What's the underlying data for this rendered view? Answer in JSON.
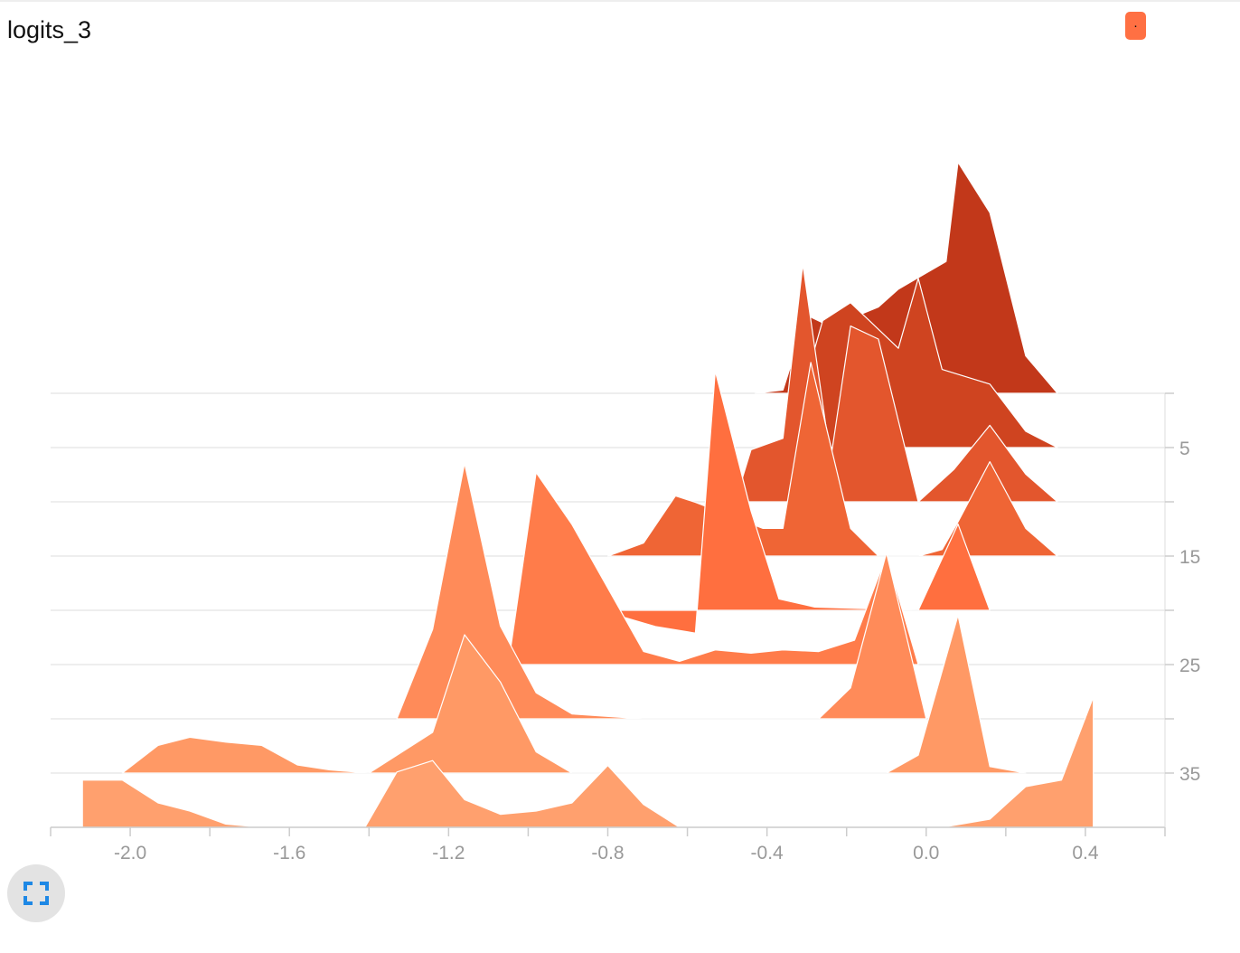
{
  "title": "logits_3",
  "legend": {
    "marker": "·",
    "color": "#ff7043"
  },
  "toolbar": {
    "expand_icon": "fullscreen-icon",
    "icon_color": "#1e88e5"
  },
  "chart_data": {
    "type": "histogram-ridgeline",
    "x_range": [
      -2.2,
      0.6
    ],
    "x_ticks": [
      -2.0,
      -1.6,
      -1.2,
      -0.8,
      -0.4,
      0.0,
      0.4
    ],
    "x_tick_labels": [
      "-2.0",
      "-1.6",
      "-1.2",
      "-0.8",
      "-0.4",
      "0.0",
      "0.4"
    ],
    "steps": [
      0,
      5,
      10,
      15,
      20,
      25,
      30,
      35,
      40
    ],
    "y_ticks": [
      5,
      15,
      25,
      35
    ],
    "y_tick_labels": [
      "5",
      "15",
      "25",
      "35"
    ],
    "series": [
      {
        "step": 0,
        "color": "#c2381a",
        "points": [
          [
            -0.43,
            0.0
          ],
          [
            -0.36,
            0.02
          ],
          [
            -0.3,
            0.48
          ],
          [
            -0.24,
            0.41
          ],
          [
            -0.12,
            0.53
          ],
          [
            -0.07,
            0.64
          ],
          [
            0.05,
            0.81
          ],
          [
            0.08,
            1.42
          ],
          [
            0.16,
            1.11
          ],
          [
            0.25,
            0.23
          ],
          [
            0.33,
            0.0
          ]
        ]
      },
      {
        "step": 5,
        "color": "#cf4420",
        "points": [
          [
            -0.35,
            0.0
          ],
          [
            -0.3,
            0.44
          ],
          [
            -0.26,
            0.78
          ],
          [
            -0.19,
            0.89
          ],
          [
            -0.07,
            0.61
          ],
          [
            -0.02,
            1.04
          ],
          [
            0.04,
            0.48
          ],
          [
            0.16,
            0.39
          ],
          [
            0.25,
            0.1
          ],
          [
            0.33,
            0.0
          ]
        ]
      },
      {
        "step": 10,
        "color": "#e3562d",
        "points": [
          [
            -0.48,
            0.0
          ],
          [
            -0.44,
            0.32
          ],
          [
            -0.36,
            0.39
          ],
          [
            -0.31,
            1.46
          ],
          [
            -0.24,
            0.26
          ],
          [
            -0.19,
            1.08
          ],
          [
            -0.12,
            1.0
          ],
          [
            -0.02,
            0.0
          ],
          [
            0.07,
            0.2
          ],
          [
            0.16,
            0.47
          ],
          [
            0.25,
            0.17
          ],
          [
            0.33,
            0.0
          ]
        ]
      },
      {
        "step": 15,
        "color": "#ef6535",
        "points": [
          [
            -0.8,
            0.0
          ],
          [
            -0.71,
            0.08
          ],
          [
            -0.63,
            0.37
          ],
          [
            -0.58,
            0.33
          ],
          [
            -0.41,
            0.17
          ],
          [
            -0.36,
            0.17
          ],
          [
            -0.29,
            1.19
          ],
          [
            -0.19,
            0.17
          ],
          [
            -0.12,
            0.0
          ],
          [
            -0.02,
            0.0
          ],
          [
            0.04,
            0.04
          ],
          [
            0.08,
            0.21
          ],
          [
            0.16,
            0.58
          ],
          [
            0.25,
            0.17
          ],
          [
            0.33,
            0.0
          ]
        ]
      },
      {
        "step": 20,
        "color": "#ff6f3f",
        "points": [
          [
            -0.82,
            0.0
          ],
          [
            -0.68,
            -0.1
          ],
          [
            -0.58,
            -0.14
          ],
          [
            -0.53,
            1.47
          ],
          [
            -0.44,
            0.61
          ],
          [
            -0.37,
            0.07
          ],
          [
            -0.28,
            0.02
          ],
          [
            -0.02,
            0.0
          ],
          [
            0.08,
            0.53
          ],
          [
            0.16,
            0.0
          ]
        ]
      },
      {
        "step": 25,
        "color": "#ff7c4a",
        "points": [
          [
            -1.05,
            0.0
          ],
          [
            -0.98,
            1.18
          ],
          [
            -0.89,
            0.86
          ],
          [
            -0.71,
            0.08
          ],
          [
            -0.62,
            0.02
          ],
          [
            -0.53,
            0.09
          ],
          [
            -0.44,
            0.07
          ],
          [
            -0.36,
            0.09
          ],
          [
            -0.27,
            0.08
          ],
          [
            -0.18,
            0.15
          ],
          [
            -0.1,
            0.67
          ],
          [
            -0.02,
            0.0
          ]
        ]
      },
      {
        "step": 30,
        "color": "#ff8b59",
        "points": [
          [
            -1.33,
            0.0
          ],
          [
            -1.24,
            0.55
          ],
          [
            -1.16,
            1.57
          ],
          [
            -1.07,
            0.57
          ],
          [
            -0.98,
            0.16
          ],
          [
            -0.89,
            0.03
          ],
          [
            -0.71,
            0.0
          ],
          [
            -0.27,
            0.0
          ],
          [
            -0.19,
            0.19
          ],
          [
            -0.1,
            1.02
          ],
          [
            0.0,
            0.0
          ]
        ]
      },
      {
        "step": 35,
        "color": "#ff9965",
        "points": [
          [
            -2.02,
            0.0
          ],
          [
            -1.93,
            0.17
          ],
          [
            -1.85,
            0.22
          ],
          [
            -1.76,
            0.19
          ],
          [
            -1.67,
            0.17
          ],
          [
            -1.58,
            0.05
          ],
          [
            -1.5,
            0.02
          ],
          [
            -1.4,
            0.0
          ],
          [
            -1.24,
            0.25
          ],
          [
            -1.16,
            0.85
          ],
          [
            -1.07,
            0.56
          ],
          [
            -0.98,
            0.13
          ],
          [
            -0.89,
            0.0
          ],
          [
            -0.1,
            0.0
          ],
          [
            -0.02,
            0.11
          ],
          [
            0.08,
            0.97
          ],
          [
            0.16,
            0.04
          ],
          [
            0.25,
            0.0
          ]
        ]
      },
      {
        "step": 40,
        "color": "#ffa06e",
        "points": [
          [
            -2.12,
            0.0
          ],
          [
            -2.12,
            0.29
          ],
          [
            -2.02,
            0.29
          ],
          [
            -1.93,
            0.15
          ],
          [
            -1.85,
            0.1
          ],
          [
            -1.76,
            0.02
          ],
          [
            -1.67,
            0.0
          ],
          [
            -1.41,
            0.0
          ],
          [
            -1.33,
            0.34
          ],
          [
            -1.24,
            0.41
          ],
          [
            -1.16,
            0.17
          ],
          [
            -1.07,
            0.08
          ],
          [
            -0.98,
            0.1
          ],
          [
            -0.89,
            0.15
          ],
          [
            -0.8,
            0.38
          ],
          [
            -0.71,
            0.14
          ],
          [
            -0.62,
            0.0
          ],
          [
            0.04,
            0.0
          ],
          [
            0.16,
            0.05
          ],
          [
            0.25,
            0.25
          ],
          [
            0.34,
            0.29
          ],
          [
            0.42,
            0.8
          ],
          [
            0.42,
            0.0
          ]
        ]
      }
    ]
  }
}
